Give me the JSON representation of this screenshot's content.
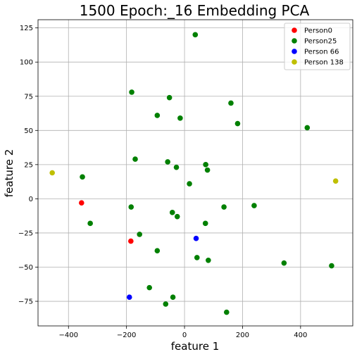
{
  "chart_data": {
    "type": "scatter",
    "title": "1500 Epoch:_16 Embedding PCA",
    "xlabel": "feature 1",
    "ylabel": "feature 2",
    "xlim": [
      -505,
      580
    ],
    "ylim": [
      -93,
      131
    ],
    "xticks": [
      -400,
      -200,
      0,
      200,
      400
    ],
    "yticks": [
      -75,
      -50,
      -25,
      0,
      25,
      50,
      75,
      100,
      125
    ],
    "xtick_labels": [
      "−400",
      "−200",
      "0",
      "200",
      "400"
    ],
    "ytick_labels": [
      "−75",
      "−50",
      "−25",
      "0",
      "25",
      "50",
      "75",
      "100",
      "125"
    ],
    "grid": true,
    "legend_position": "top-right",
    "series": [
      {
        "name": "Person0",
        "color": "#ff0000",
        "points": [
          [
            -355,
            -3
          ],
          [
            -185,
            -31
          ]
        ]
      },
      {
        "name": "Person25",
        "color": "#008000",
        "points": [
          [
            37,
            120
          ],
          [
            -182,
            78
          ],
          [
            -52,
            74
          ],
          [
            160,
            70
          ],
          [
            -94,
            61
          ],
          [
            -15,
            59
          ],
          [
            183,
            55
          ],
          [
            423,
            52
          ],
          [
            -170,
            29
          ],
          [
            -58,
            27
          ],
          [
            73,
            25
          ],
          [
            -28,
            23
          ],
          [
            79,
            21
          ],
          [
            17,
            11
          ],
          [
            -352,
            16
          ],
          [
            -184,
            -6
          ],
          [
            136,
            -6
          ],
          [
            240,
            -5
          ],
          [
            -42,
            -10
          ],
          [
            -25,
            -13
          ],
          [
            -325,
            -18
          ],
          [
            72,
            -18
          ],
          [
            -155,
            -26
          ],
          [
            -94,
            -38
          ],
          [
            43,
            -43
          ],
          [
            82,
            -45
          ],
          [
            343,
            -47
          ],
          [
            507,
            -49
          ],
          [
            -121,
            -65
          ],
          [
            -40,
            -72
          ],
          [
            -65,
            -77
          ],
          [
            145,
            -83
          ]
        ]
      },
      {
        "name": "Person 66",
        "color": "#0000ff",
        "points": [
          [
            40,
            -29
          ],
          [
            -190,
            -72
          ]
        ]
      },
      {
        "name": "Person 138",
        "color": "#bfbf00",
        "points": [
          [
            -456,
            19
          ],
          [
            521,
            13
          ]
        ]
      }
    ]
  }
}
